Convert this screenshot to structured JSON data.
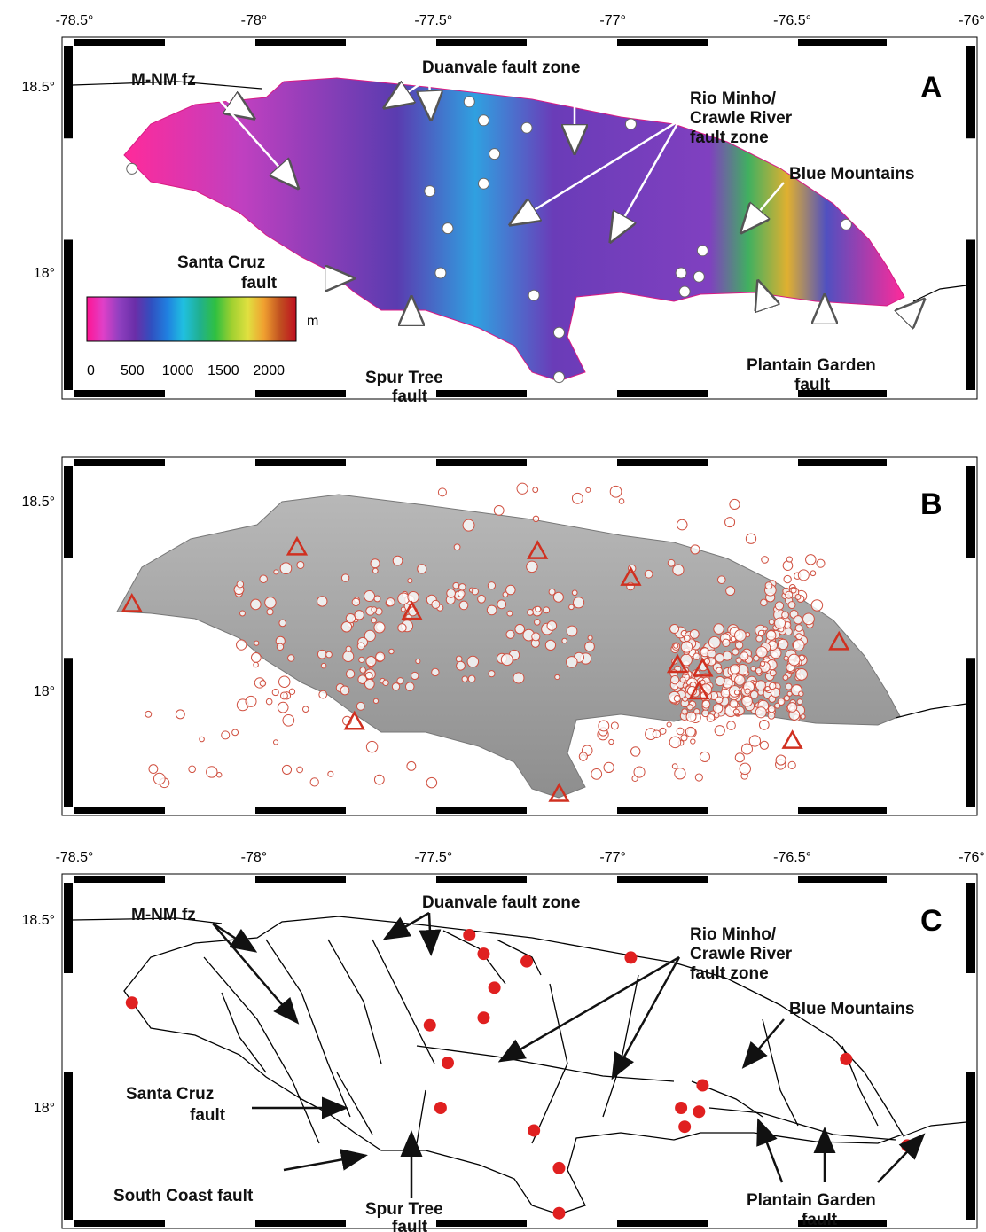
{
  "lon_ticks": [
    "-78.5°",
    "-78°",
    "-77.5°",
    "-77°",
    "-76.5°",
    "-76°"
  ],
  "lat_ticks": [
    "18.5°",
    "18°"
  ],
  "panels": {
    "A": {
      "letter": "A",
      "labels": {
        "mnm": "M-NM fz",
        "duanvale": "Duanvale fault zone",
        "rio1": "Rio Minho/",
        "rio2": "Crawle River",
        "rio3": "fault zone",
        "blue": "Blue Mountains",
        "santa1": "Santa Cruz",
        "santa2": "fault",
        "spur1": "Spur Tree",
        "spur2": "fault",
        "plant1": "Plantain Garden",
        "plant2": "fault"
      },
      "colorbar": {
        "unit": "m",
        "ticks": [
          "0",
          "500",
          "1000",
          "1500",
          "2000"
        ],
        "colors": [
          "#ff1493",
          "#e040c8",
          "#9040c0",
          "#6a2ea8",
          "#3050c0",
          "#2080e0",
          "#20c0e0",
          "#20b090",
          "#30c040",
          "#a0d030",
          "#e0e040",
          "#f0a030",
          "#c05020",
          "#c01020"
        ]
      }
    },
    "B": {
      "letter": "B"
    },
    "C": {
      "letter": "C",
      "labels": {
        "mnm": "M-NM fz",
        "duanvale": "Duanvale fault zone",
        "rio1": "Rio Minho/",
        "rio2": "Crawle River",
        "rio3": "fault zone",
        "blue": "Blue Mountains",
        "santa1": "Santa Cruz",
        "santa2": "fault",
        "south": "South Coast fault",
        "spur1": "Spur Tree",
        "spur2": "fault",
        "plant1": "Plantain Garden",
        "plant2": "fault"
      }
    }
  },
  "stations": [
    [
      -78.34,
      18.28
    ],
    [
      -77.51,
      18.22
    ],
    [
      -77.36,
      18.24
    ],
    [
      -77.33,
      18.32
    ],
    [
      -77.46,
      18.12
    ],
    [
      -77.36,
      18.41
    ],
    [
      -77.24,
      18.39
    ],
    [
      -76.95,
      18.4
    ],
    [
      -77.4,
      18.46
    ],
    [
      -77.48,
      18.0
    ],
    [
      -77.22,
      17.94
    ],
    [
      -77.15,
      17.84
    ],
    [
      -77.15,
      17.72
    ],
    [
      -76.75,
      18.06
    ],
    [
      -76.81,
      18.0
    ],
    [
      -76.76,
      17.99
    ],
    [
      -76.8,
      17.95
    ],
    [
      -76.35,
      18.13
    ],
    [
      -76.18,
      17.9
    ]
  ],
  "triangles": [
    [
      -78.34,
      18.23
    ],
    [
      -77.88,
      18.38
    ],
    [
      -77.56,
      18.21
    ],
    [
      -77.21,
      18.37
    ],
    [
      -76.95,
      18.3
    ],
    [
      -77.72,
      17.92
    ],
    [
      -76.82,
      18.07
    ],
    [
      -76.75,
      18.06
    ],
    [
      -76.76,
      18.0
    ],
    [
      -76.5,
      17.87
    ],
    [
      -76.37,
      18.13
    ],
    [
      -77.15,
      17.73
    ]
  ]
}
